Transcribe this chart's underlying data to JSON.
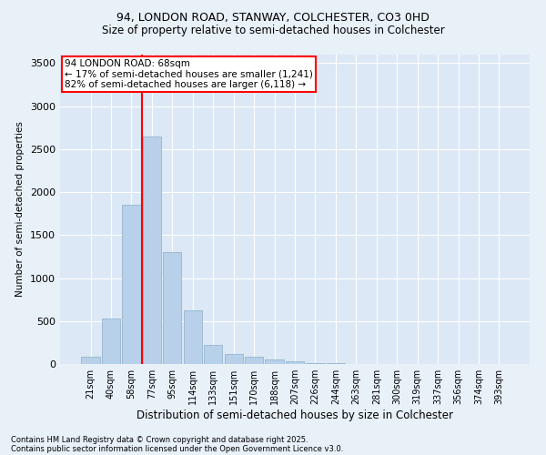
{
  "title1": "94, LONDON ROAD, STANWAY, COLCHESTER, CO3 0HD",
  "title2": "Size of property relative to semi-detached houses in Colchester",
  "xlabel": "Distribution of semi-detached houses by size in Colchester",
  "ylabel": "Number of semi-detached properties",
  "categories": [
    "21sqm",
    "40sqm",
    "58sqm",
    "77sqm",
    "95sqm",
    "114sqm",
    "133sqm",
    "151sqm",
    "170sqm",
    "188sqm",
    "207sqm",
    "226sqm",
    "244sqm",
    "263sqm",
    "281sqm",
    "300sqm",
    "319sqm",
    "337sqm",
    "356sqm",
    "374sqm",
    "393sqm"
  ],
  "values": [
    80,
    530,
    1850,
    2650,
    1300,
    620,
    220,
    120,
    80,
    50,
    30,
    15,
    8,
    5,
    3,
    2,
    2,
    1,
    1,
    0,
    0
  ],
  "bar_color": "#b8d0ea",
  "bar_edge_color": "#8aaec8",
  "vline_x": 2.5,
  "vline_color": "red",
  "annotation_title": "94 LONDON ROAD: 68sqm",
  "annotation_line1": "← 17% of semi-detached houses are smaller (1,241)",
  "annotation_line2": "82% of semi-detached houses are larger (6,118) →",
  "annotation_box_color": "red",
  "ylim": [
    0,
    3600
  ],
  "yticks": [
    0,
    500,
    1000,
    1500,
    2000,
    2500,
    3000,
    3500
  ],
  "footnote1": "Contains HM Land Registry data © Crown copyright and database right 2025.",
  "footnote2": "Contains public sector information licensed under the Open Government Licence v3.0.",
  "background_color": "#e8f0f8",
  "plot_bg_color": "#dce8f5",
  "title1_fontsize": 9,
  "title2_fontsize": 8.5,
  "ylabel_fontsize": 7.5,
  "xlabel_fontsize": 8.5,
  "xtick_fontsize": 7,
  "ytick_fontsize": 8,
  "footnote_fontsize": 6,
  "annot_fontsize": 7.5
}
